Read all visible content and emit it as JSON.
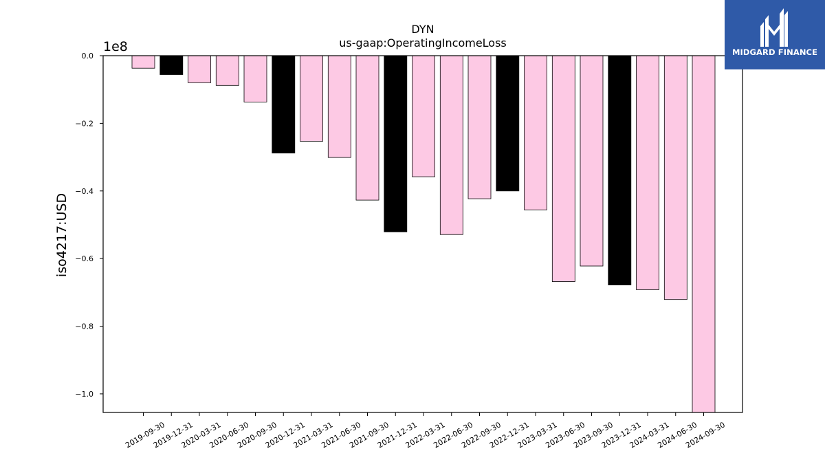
{
  "chart_data": {
    "type": "bar",
    "title": "DYN",
    "subtitle": "us-gaap:OperatingIncomeLoss",
    "xlabel": "",
    "ylabel": "iso4217:USD",
    "scale_label": "1e8",
    "ylim": [
      -1.055,
      0.0
    ],
    "yticks": [
      0.0,
      -0.2,
      -0.4,
      -0.6,
      -0.8,
      -1.0
    ],
    "ytick_labels": [
      "0.0",
      "−0.2",
      "−0.4",
      "−0.6",
      "−0.8",
      "−1.0"
    ],
    "grid": false,
    "colors": {
      "quarter": "#fdc9e4",
      "year_end": "#000000",
      "edge": "#000000"
    },
    "categories": [
      "2019-09-30",
      "2019-12-31",
      "2020-03-31",
      "2020-06-30",
      "2020-09-30",
      "2020-12-31",
      "2021-03-31",
      "2021-06-30",
      "2021-09-30",
      "2021-12-31",
      "2022-03-31",
      "2022-06-30",
      "2022-09-30",
      "2022-12-31",
      "2023-03-31",
      "2023-06-30",
      "2023-09-30",
      "2023-12-31",
      "2024-03-31",
      "2024-06-30",
      "2024-09-30"
    ],
    "values": [
      -0.037,
      -0.056,
      -0.08,
      -0.088,
      -0.137,
      -0.288,
      -0.253,
      -0.301,
      -0.427,
      -0.521,
      -0.358,
      -0.529,
      -0.423,
      -0.4,
      -0.456,
      -0.668,
      -0.622,
      -0.678,
      -0.692,
      -0.721,
      -1.055
    ],
    "highlight": [
      false,
      true,
      false,
      false,
      false,
      true,
      false,
      false,
      false,
      true,
      false,
      false,
      false,
      true,
      false,
      false,
      false,
      true,
      false,
      false,
      false
    ]
  },
  "logo": {
    "name": "MIDGARD FINANCE",
    "icon": "midgard-logo-icon",
    "background": "#2f5aa8"
  }
}
